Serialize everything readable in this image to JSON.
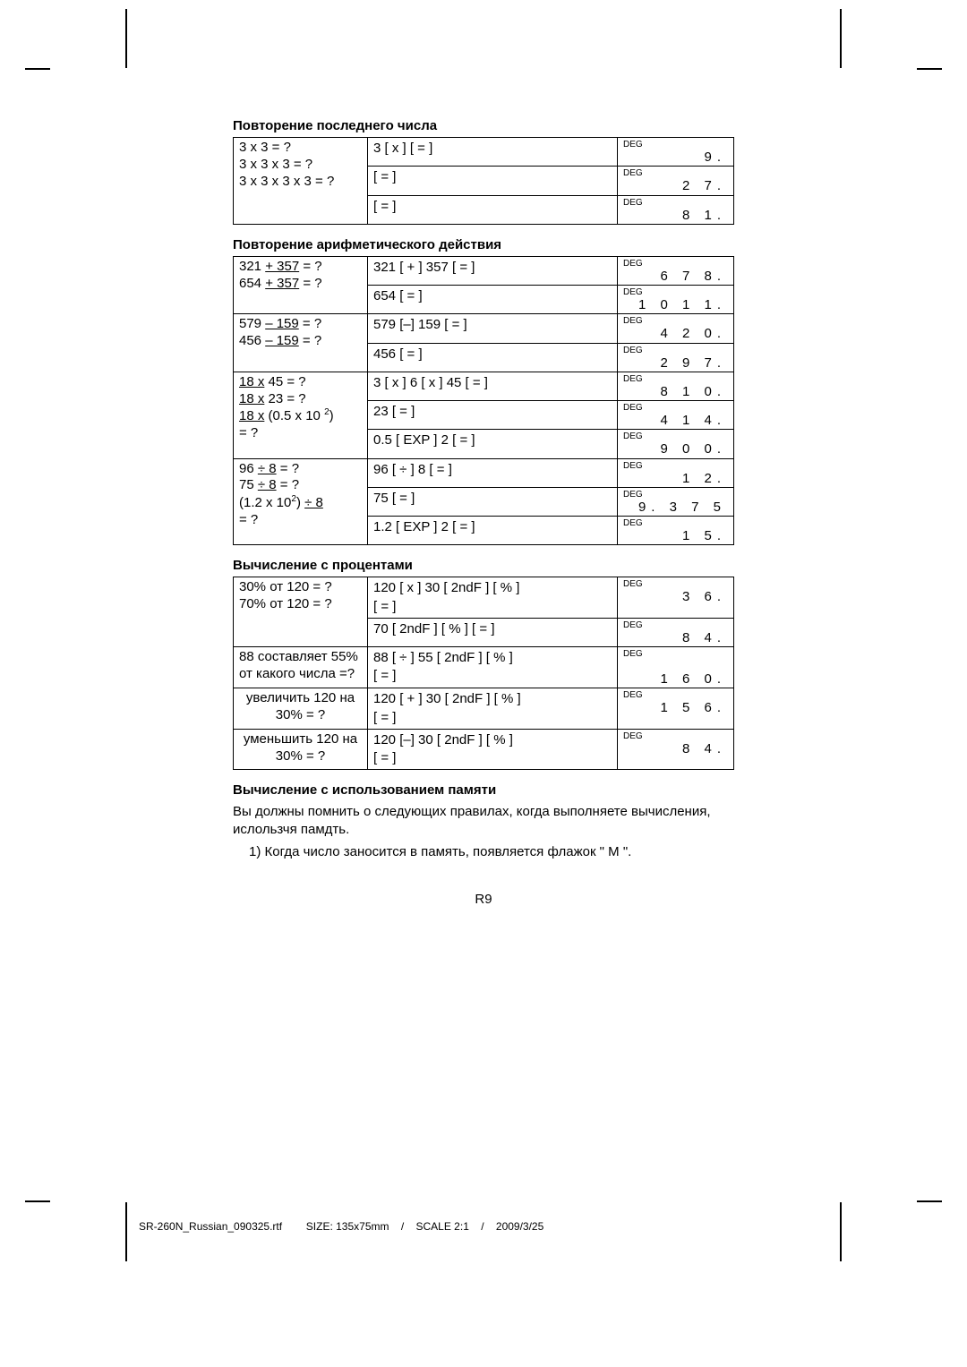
{
  "section1": {
    "title": "Повторение последнего числа",
    "problem": "3 x 3 = ?\n3 x 3 x 3 = ?\n3 x 3 x 3 x 3 = ?",
    "rows": [
      {
        "keys": "3 [ x ] [ = ]",
        "deg": "DEG",
        "val": "9."
      },
      {
        "keys": "[ = ]",
        "deg": "DEG",
        "val": "2 7."
      },
      {
        "keys": "[ = ]",
        "deg": "DEG",
        "val": "8 1."
      }
    ]
  },
  "section2": {
    "title": "Повторение арифметического действия",
    "groups": [
      {
        "problem_html": "321 <u>+ 357</u> = ?<br>654 <u>+ 357</u> = ?",
        "rows": [
          {
            "keys": "321 [ + ] 357 [ = ]",
            "deg": "DEG",
            "val": "6 7 8."
          },
          {
            "keys": "654 [ = ]",
            "deg": "DEG",
            "val": "1 0 1 1."
          }
        ]
      },
      {
        "problem_html": "579 <u>– 159</u> = ?<br>456 <u>– 159</u> = ?",
        "rows": [
          {
            "keys": "579 [–] 159 [ = ]",
            "deg": "DEG",
            "val": "4 2 0."
          },
          {
            "keys": "456 [ = ]",
            "deg": "DEG",
            "val": "2 9 7."
          }
        ]
      },
      {
        "problem_html": "<u>18 x</u> 45 = ?<br><u>18 x</u> 23 = ?<br><u>18 x</u> (0.5 x 10 <sup>2</sup>)<br>= ?",
        "rows": [
          {
            "keys": "3 [ x ] 6 [ x ] 45 [ = ]",
            "deg": "DEG",
            "val": "8 1 0."
          },
          {
            "keys": "23 [ = ]",
            "deg": "DEG",
            "val": "4 1 4."
          },
          {
            "keys": "0.5 [ EXP ] 2 [ = ]",
            "deg": "DEG",
            "val": "9 0 0."
          }
        ]
      },
      {
        "problem_html": "96 <u>÷ 8</u> = ?<br>75 <u>÷ 8</u> = ?<br>(1.2 x 10<sup>2</sup>) <u>÷ 8</u><br>= ?",
        "rows": [
          {
            "keys": "96 [ ÷ ] 8 [ = ]",
            "deg": "DEG",
            "val": "1 2."
          },
          {
            "keys": "75 [ = ]",
            "deg": "DEG",
            "val": "9. 3 7 5"
          },
          {
            "keys": "1.2 [ EXP ] 2 [ = ]",
            "deg": "DEG",
            "val": "1 5."
          }
        ]
      }
    ]
  },
  "section3": {
    "title": "Вычисление с процентами",
    "groups": [
      {
        "problem": "30% от 120 = ?\n70% от 120 = ?",
        "rows": [
          {
            "keys": "120 [ x ] 30 [ 2ndF ] [ % ]\n[ = ]",
            "deg": "DEG",
            "val": "3 6."
          },
          {
            "keys": "70 [ 2ndF ] [ % ] [ = ]",
            "deg": "DEG",
            "val": "8 4."
          }
        ]
      },
      {
        "problem": "88 составляет 55% от какого числа =?",
        "rows": [
          {
            "keys": "88 [ ÷ ] 55 [ 2ndF ] [ % ]\n[ = ]",
            "deg": "DEG",
            "val": "1 6 0."
          }
        ]
      },
      {
        "problem": "увеличить 120 на 30% = ?",
        "rows": [
          {
            "keys": "120 [ + ] 30 [ 2ndF ] [ % ]\n[ = ]",
            "deg": "DEG",
            "val": "1 5 6."
          }
        ]
      },
      {
        "problem": "уменьшить 120 на 30% = ?",
        "rows": [
          {
            "keys": "120 [–] 30 [ 2ndF ] [ % ]\n[ = ]",
            "deg": "DEG",
            "val": "8 4."
          }
        ]
      }
    ]
  },
  "section4": {
    "title": "Вычисление с использованием памяти",
    "body1": "Вы должны помнить о следующих правилах, когда выполняете вычисления, ислользчя памдть.",
    "body2": "1) Когда число заносится в память, появляется флажок \" М \"."
  },
  "page_num": "R9",
  "footer": {
    "file": "SR-260N_Russian_090325.rtf",
    "size": "SIZE: 135x75mm",
    "scale": "SCALE 2:1",
    "date": "2009/3/25"
  }
}
